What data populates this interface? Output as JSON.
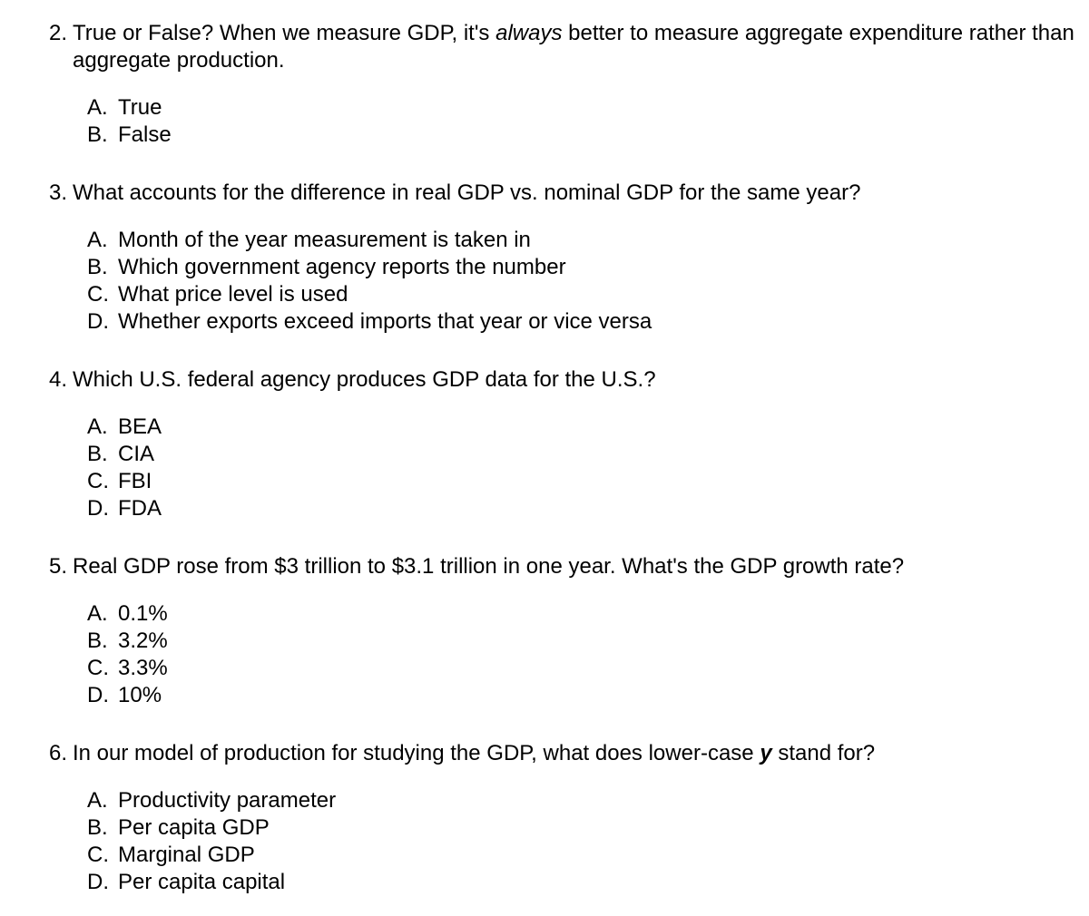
{
  "typography": {
    "font_family": "Helvetica Neue, Helvetica, Arial, sans-serif",
    "font_size_pt": 18,
    "line_height": 1.25,
    "text_color": "#000000",
    "background_color": "#ffffff"
  },
  "questions": [
    {
      "number": "2.",
      "stem_pre": "True or False?  When we measure GDP, it's ",
      "stem_italic": "always",
      "stem_post": " better to measure aggregate expenditure rather than aggregate production.",
      "options": [
        {
          "label": "A.",
          "text": "True"
        },
        {
          "label": "B.",
          "text": "False"
        }
      ]
    },
    {
      "number": "3.",
      "stem": "What accounts for the difference in real GDP vs. nominal GDP for the same year?",
      "options": [
        {
          "label": "A.",
          "text": "Month of the year measurement is taken in"
        },
        {
          "label": "B.",
          "text": "Which government agency reports the number"
        },
        {
          "label": "C.",
          "text": "What price level is used"
        },
        {
          "label": "D.",
          "text": "Whether exports exceed imports that year or vice versa"
        }
      ]
    },
    {
      "number": "4.",
      "stem": "Which U.S. federal agency produces GDP data for the U.S.?",
      "options": [
        {
          "label": "A.",
          "text": "BEA"
        },
        {
          "label": "B.",
          "text": "CIA"
        },
        {
          "label": "C.",
          "text": "FBI"
        },
        {
          "label": "D.",
          "text": "FDA"
        }
      ]
    },
    {
      "number": "5.",
      "stem": "Real GDP rose from $3 trillion to $3.1 trillion in one year. What's the GDP growth rate?",
      "options": [
        {
          "label": "A.",
          "text": "0.1%"
        },
        {
          "label": "B.",
          "text": "3.2%"
        },
        {
          "label": "C.",
          "text": "3.3%"
        },
        {
          "label": "D.",
          "text": "10%"
        }
      ]
    },
    {
      "number": "6.",
      "stem_pre": "In our model of production for studying the GDP, what does lower-case ",
      "stem_bold_italic": "y",
      "stem_post": " stand for?",
      "options": [
        {
          "label": "A.",
          "text": "Productivity parameter"
        },
        {
          "label": "B.",
          "text": "Per capita GDP"
        },
        {
          "label": "C.",
          "text": "Marginal GDP"
        },
        {
          "label": "D.",
          "text": "Per capita capital"
        }
      ]
    }
  ]
}
